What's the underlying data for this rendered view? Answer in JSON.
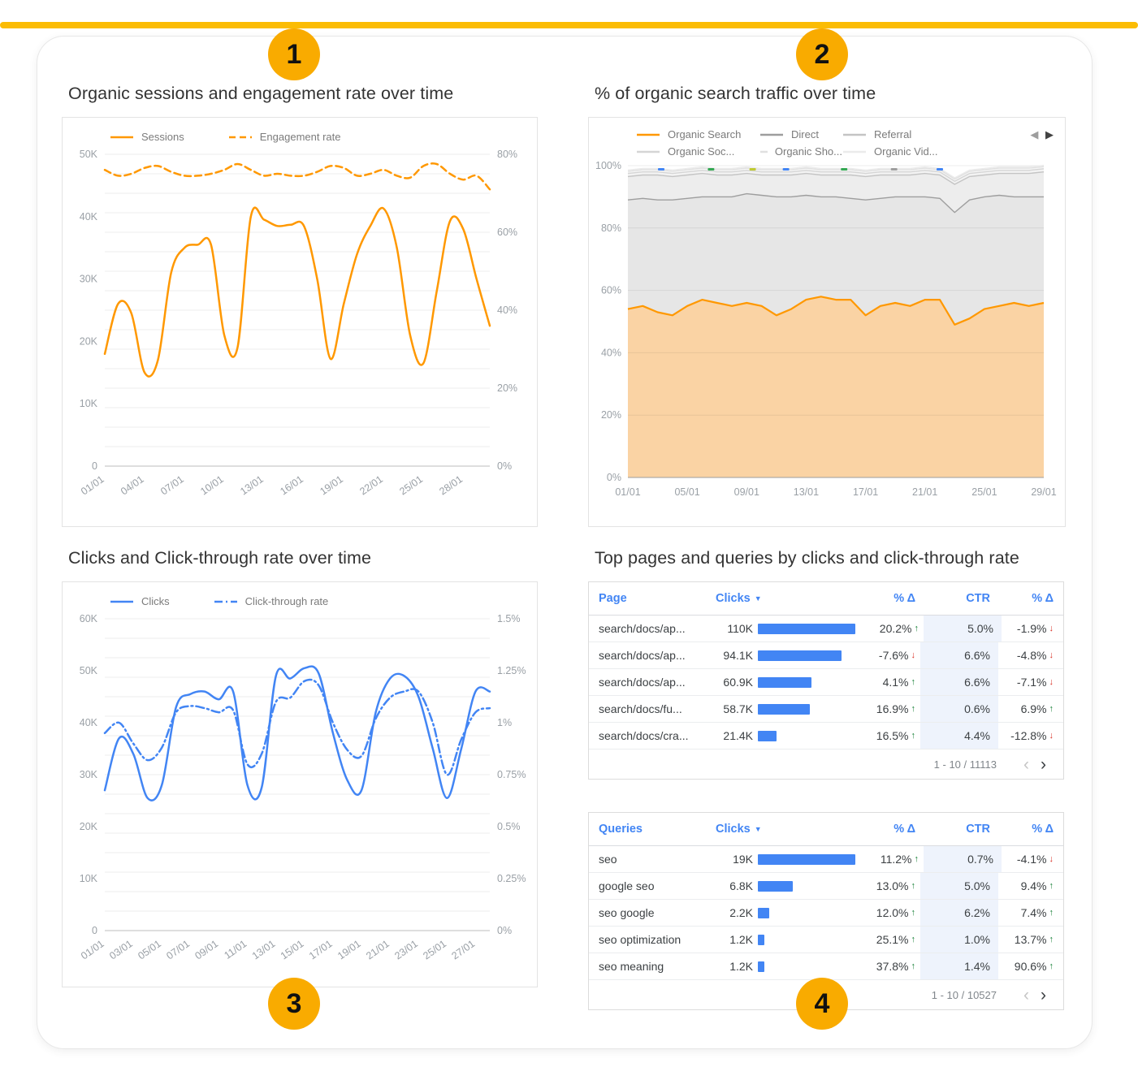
{
  "page": {
    "accent_bar_color": "#FBBC04",
    "badge_color": "#F9AB00",
    "background": "#FFFFFF"
  },
  "colors": {
    "positive": "#188038",
    "negative": "#D93025",
    "table_header": "#4285F4",
    "bar": "#4285F4",
    "ctr_band": "#EEF3FC",
    "orange": "#FF9800",
    "blue": "#4285F4"
  },
  "icons": {
    "sort_desc": "▼",
    "prev": "‹",
    "next": "›",
    "legend_prev": "◀",
    "legend_next": "▶",
    "up_arrow": "↑",
    "down_arrow": "↓"
  },
  "badges": [
    {
      "label": "1"
    },
    {
      "label": "2"
    },
    {
      "label": "3"
    },
    {
      "label": "4"
    }
  ],
  "panels": {
    "sessions": {
      "title": "Organic sessions and engagement rate over time"
    },
    "traffic": {
      "title": "% of organic search traffic over time"
    },
    "clicks": {
      "title": "Clicks and Click-through rate over time"
    },
    "tables": {
      "title": "Top pages and queries by clicks and click-through rate"
    }
  },
  "chart_data": [
    {
      "id": "sessions_engagement",
      "type": "line",
      "title": "Organic sessions and engagement rate over time",
      "x_tick_labels": [
        "01/01",
        "04/01",
        "07/01",
        "10/01",
        "13/01",
        "16/01",
        "19/01",
        "22/01",
        "25/01",
        "28/01"
      ],
      "x_tick_step": 3,
      "y_left": {
        "min": 0,
        "max": 50,
        "unit": "K sessions",
        "tick_labels": [
          "0",
          "10K",
          "20K",
          "30K",
          "40K",
          "50K"
        ]
      },
      "y_right": {
        "min": 0,
        "max": 80,
        "unit": "%",
        "tick_labels": [
          "0%",
          "20%",
          "40%",
          "60%",
          "80%"
        ]
      },
      "legend_position": "top",
      "grid": true,
      "series": [
        {
          "name": "Sessions",
          "axis": "left",
          "color": "#FF9800",
          "dash": "solid",
          "values": [
            18,
            26,
            24.5,
            15,
            17,
            31,
            35,
            35.5,
            35.5,
            21,
            19,
            40,
            39.5,
            38.5,
            38.7,
            38.5,
            30,
            17.2,
            26,
            34,
            38.5,
            41.3,
            35,
            21,
            16.5,
            28,
            39.3,
            38,
            30,
            22.5
          ]
        },
        {
          "name": "Engagement rate",
          "axis": "right",
          "color": "#FF9800",
          "dash": "dash",
          "values": [
            76,
            74.5,
            75,
            76.5,
            77,
            75.5,
            74.5,
            74.5,
            75,
            76,
            77.5,
            76,
            74.5,
            75,
            74.5,
            74.5,
            75.5,
            77,
            76.5,
            74.5,
            75,
            76,
            74.5,
            74,
            77,
            77.5,
            75,
            73.5,
            74.5,
            71
          ]
        }
      ]
    },
    {
      "id": "organic_traffic_share",
      "type": "area",
      "stacked": true,
      "title": "% of organic search traffic over time",
      "x_tick_labels": [
        "01/01",
        "05/01",
        "09/01",
        "13/01",
        "17/01",
        "21/01",
        "25/01",
        "29/01"
      ],
      "x_tick_step": 4,
      "y": {
        "min": 0,
        "max": 100,
        "unit": "%",
        "tick_labels": [
          "0%",
          "20%",
          "40%",
          "60%",
          "80%",
          "100%"
        ]
      },
      "legend_rows": [
        [
          "Organic Search",
          "Direct",
          "Referral"
        ],
        [
          "Organic Soc...",
          "Organic Sho...",
          "Organic Vid..."
        ]
      ],
      "series": [
        {
          "name": "Organic Search",
          "color": "#FF9800",
          "fill": "#FAD3A4",
          "values": [
            54,
            55,
            53,
            52,
            55,
            57,
            56,
            55,
            56,
            55,
            52,
            54,
            57,
            58,
            57,
            57,
            52,
            55,
            56,
            55,
            57,
            57,
            49,
            51,
            54,
            55,
            56,
            55,
            56
          ]
        },
        {
          "name": "Direct",
          "color": "#9E9E9E",
          "fill": "#E6E6E6",
          "values": [
            35,
            34.5,
            36,
            37,
            34.5,
            33,
            34,
            35,
            35,
            35.5,
            38,
            36,
            33.5,
            32,
            33,
            32.5,
            37,
            34.5,
            34,
            35,
            33,
            32.5,
            36,
            38,
            36,
            35.5,
            34,
            35,
            34
          ]
        },
        {
          "name": "Referral",
          "color": "#C4C4C4",
          "fill": "#EDEDED",
          "values": [
            7.5,
            7.5,
            8,
            7.5,
            7.5,
            7.5,
            7,
            7,
            6.5,
            6.5,
            7,
            7,
            7,
            7,
            7,
            7.5,
            7.5,
            7.5,
            7,
            7,
            7.5,
            7.5,
            9,
            7.5,
            7,
            7,
            7.5,
            7.5,
            8
          ]
        },
        {
          "name": "Organic Soc...",
          "color": "#D5D5D5",
          "fill": "#F3F3F3",
          "values_const": 1.0
        },
        {
          "name": "Organic Sho...",
          "color": "#E0E0E0",
          "fill": "#F7F7F7",
          "values_const": 0.7
        },
        {
          "name": "Organic Vid...",
          "color": "#EBEBEB",
          "fill": "#FBFBFB",
          "values_const": 0.4
        }
      ],
      "top_markers": [
        {
          "pos": 0.08,
          "color": "#4285F4"
        },
        {
          "pos": 0.2,
          "color": "#34A853"
        },
        {
          "pos": 0.3,
          "color": "#C0CA33"
        },
        {
          "pos": 0.38,
          "color": "#4285F4"
        },
        {
          "pos": 0.52,
          "color": "#34A853"
        },
        {
          "pos": 0.64,
          "color": "#9E9E9E"
        },
        {
          "pos": 0.75,
          "color": "#4285F4"
        }
      ]
    },
    {
      "id": "clicks_ctr",
      "type": "line",
      "title": "Clicks and Click-through rate over time",
      "x_tick_labels": [
        "01/01",
        "03/01",
        "05/01",
        "07/01",
        "09/01",
        "11/01",
        "13/01",
        "15/01",
        "17/01",
        "19/01",
        "21/01",
        "23/01",
        "25/01",
        "27/01"
      ],
      "x_tick_step": 2,
      "y_left": {
        "min": 0,
        "max": 60,
        "unit": "K clicks",
        "tick_labels": [
          "0",
          "10K",
          "20K",
          "30K",
          "40K",
          "50K",
          "60K"
        ]
      },
      "y_right": {
        "min": 0,
        "max": 1.5,
        "unit": "%",
        "tick_labels": [
          "0%",
          "0.25%",
          "0.5%",
          "0.75%",
          "1%",
          "1.25%",
          "1.5%"
        ]
      },
      "legend_position": "top",
      "grid": true,
      "series": [
        {
          "name": "Clicks",
          "axis": "left",
          "color": "#4285F4",
          "dash": "solid",
          "values": [
            27,
            37,
            34,
            25.5,
            28,
            43,
            45.5,
            46,
            44.5,
            46,
            28,
            27.5,
            49,
            48.5,
            50.5,
            49.5,
            38,
            29,
            27,
            42,
            48.5,
            49,
            45,
            35,
            25.5,
            35,
            46,
            46
          ]
        },
        {
          "name": "Click-through rate",
          "axis": "right",
          "color": "#4285F4",
          "dash": "dashdot",
          "values": [
            0.95,
            1.0,
            0.9,
            0.82,
            0.88,
            1.05,
            1.08,
            1.07,
            1.05,
            1.06,
            0.8,
            0.85,
            1.1,
            1.12,
            1.2,
            1.18,
            1.0,
            0.87,
            0.84,
            1.02,
            1.12,
            1.15,
            1.15,
            1.0,
            0.75,
            0.92,
            1.05,
            1.07
          ]
        }
      ]
    },
    {
      "id": "top_pages",
      "type": "table",
      "columns": [
        {
          "label": "Page"
        },
        {
          "label": "Clicks",
          "sort": "desc"
        },
        {
          "label": "% Δ"
        },
        {
          "label": "CTR"
        },
        {
          "label": "% Δ"
        }
      ],
      "rows": [
        {
          "name": "search/docs/ap...",
          "clicks": "110K",
          "clicks_num": 110,
          "delta1": "20.2%",
          "delta1_dir": "up",
          "ctr": "5.0%",
          "delta2": "-1.9%",
          "delta2_dir": "down"
        },
        {
          "name": "search/docs/ap...",
          "clicks": "94.1K",
          "clicks_num": 94.1,
          "delta1": "-7.6%",
          "delta1_dir": "down",
          "ctr": "6.6%",
          "delta2": "-4.8%",
          "delta2_dir": "down"
        },
        {
          "name": "search/docs/ap...",
          "clicks": "60.9K",
          "clicks_num": 60.9,
          "delta1": "4.1%",
          "delta1_dir": "up",
          "ctr": "6.6%",
          "delta2": "-7.1%",
          "delta2_dir": "down"
        },
        {
          "name": "search/docs/fu...",
          "clicks": "58.7K",
          "clicks_num": 58.7,
          "delta1": "16.9%",
          "delta1_dir": "up",
          "ctr": "0.6%",
          "delta2": "6.9%",
          "delta2_dir": "up"
        },
        {
          "name": "search/docs/cra...",
          "clicks": "21.4K",
          "clicks_num": 21.4,
          "delta1": "16.5%",
          "delta1_dir": "up",
          "ctr": "4.4%",
          "delta2": "-12.8%",
          "delta2_dir": "down"
        }
      ],
      "pagination": "1 - 10 / 11113"
    },
    {
      "id": "top_queries",
      "type": "table",
      "columns": [
        {
          "label": "Queries"
        },
        {
          "label": "Clicks",
          "sort": "desc"
        },
        {
          "label": "% Δ"
        },
        {
          "label": "CTR"
        },
        {
          "label": "% Δ"
        }
      ],
      "rows": [
        {
          "name": "seo",
          "clicks": "19K",
          "clicks_num": 19,
          "delta1": "11.2%",
          "delta1_dir": "up",
          "ctr": "0.7%",
          "delta2": "-4.1%",
          "delta2_dir": "down"
        },
        {
          "name": "google seo",
          "clicks": "6.8K",
          "clicks_num": 6.8,
          "delta1": "13.0%",
          "delta1_dir": "up",
          "ctr": "5.0%",
          "delta2": "9.4%",
          "delta2_dir": "up"
        },
        {
          "name": "seo google",
          "clicks": "2.2K",
          "clicks_num": 2.2,
          "delta1": "12.0%",
          "delta1_dir": "up",
          "ctr": "6.2%",
          "delta2": "7.4%",
          "delta2_dir": "up"
        },
        {
          "name": "seo optimization",
          "clicks": "1.2K",
          "clicks_num": 1.2,
          "delta1": "25.1%",
          "delta1_dir": "up",
          "ctr": "1.0%",
          "delta2": "13.7%",
          "delta2_dir": "up"
        },
        {
          "name": "seo meaning",
          "clicks": "1.2K",
          "clicks_num": 1.2,
          "delta1": "37.8%",
          "delta1_dir": "up",
          "ctr": "1.4%",
          "delta2": "90.6%",
          "delta2_dir": "up"
        }
      ],
      "pagination": "1 - 10 / 10527"
    }
  ]
}
